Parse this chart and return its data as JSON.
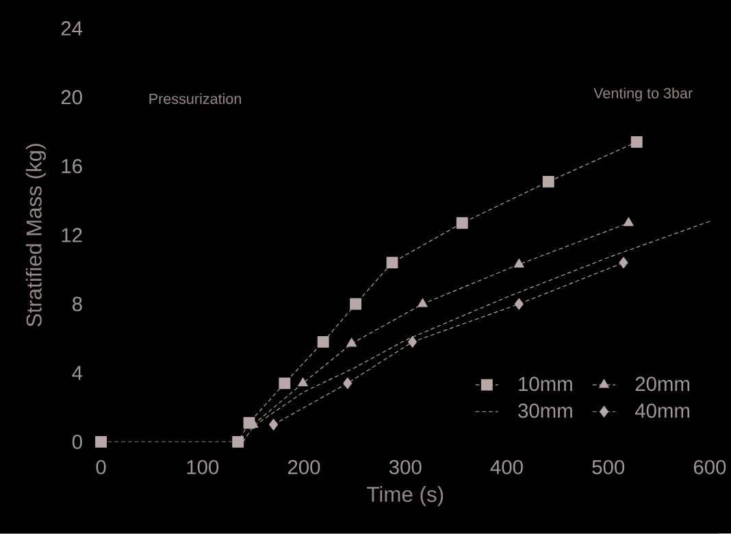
{
  "chart_data": {
    "type": "line",
    "xlabel": "Time (s)",
    "ylabel": "Stratified Mass (kg)",
    "xlim": [
      0,
      600
    ],
    "ylim": [
      0,
      24
    ],
    "xticks": [
      0,
      100,
      200,
      300,
      400,
      500,
      600
    ],
    "yticks": [
      0,
      4,
      8,
      12,
      16,
      20,
      24
    ],
    "grid": false,
    "legend": "bottom right",
    "line_style": "dashed",
    "annotations": [
      "Pressurization",
      "Venting to 3bar"
    ],
    "series": [
      {
        "name": "10mm",
        "color": "#b8a8a8",
        "marker": "square",
        "x": [
          0,
          135,
          146,
          181,
          219,
          251,
          287,
          356,
          441,
          528
        ],
        "values": [
          0,
          0,
          1.1,
          3.4,
          5.8,
          8.0,
          10.4,
          12.7,
          15.1,
          17.4
        ]
      },
      {
        "name": "20mm",
        "color": "#b8a8a8",
        "marker": "triangle",
        "x": [
          150,
          199,
          247,
          317,
          412,
          520
        ],
        "values": [
          1.0,
          3.4,
          5.7,
          8.0,
          10.3,
          12.7
        ]
      },
      {
        "name": "30mm",
        "color": "#b8a8a8",
        "marker": "none",
        "x": [
          140,
          150,
          200,
          250,
          300,
          400,
          500,
          600
        ],
        "values": [
          0,
          0.9,
          2.9,
          4.3,
          5.9,
          8.4,
          10.7,
          12.8
        ]
      },
      {
        "name": "40mm",
        "color": "#b8a8a8",
        "marker": "diamond",
        "x": [
          170,
          243,
          307,
          412,
          515
        ],
        "values": [
          1.0,
          3.4,
          5.8,
          8.0,
          10.4
        ]
      }
    ]
  }
}
